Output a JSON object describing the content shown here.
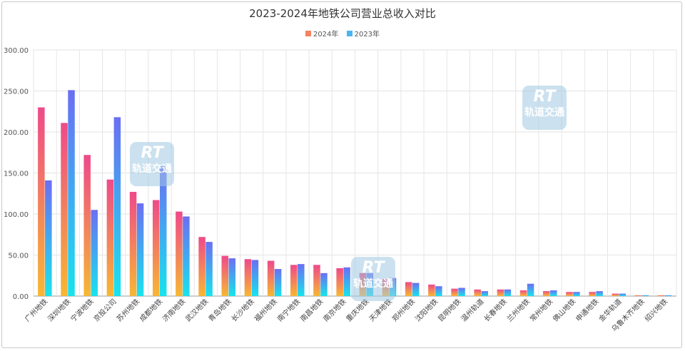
{
  "chart_data": {
    "type": "bar",
    "title": "2023-2024年地铁公司营业总收入对比",
    "categories": [
      "广州地铁",
      "深圳地铁",
      "宁波地铁",
      "京投公司",
      "苏州地铁",
      "成都地铁",
      "济南地铁",
      "武汉地铁",
      "青岛地铁",
      "长沙地铁",
      "福州地铁",
      "南宁地铁",
      "南昌地铁",
      "南京地铁",
      "重庆地铁",
      "天津地铁",
      "郑州地铁",
      "沈阳地铁",
      "昆明地铁",
      "温州轨道",
      "长春地铁",
      "兰州地铁",
      "常州地铁",
      "佛山地铁",
      "申通地铁",
      "金华轨道",
      "乌鲁木齐地铁",
      "绍兴地铁"
    ],
    "series": [
      {
        "name": "2024年",
        "color": "#f4845f",
        "values": [
          230,
          211,
          172,
          142,
          127,
          117,
          103,
          72,
          49,
          45,
          43,
          38,
          38,
          34,
          28,
          21,
          17,
          14,
          9,
          8,
          8,
          7,
          6,
          5,
          5,
          3,
          1,
          1
        ]
      },
      {
        "name": "2023年",
        "color": "#4ab6f0",
        "values": [
          141,
          251,
          105,
          218,
          113,
          158,
          97,
          66,
          46,
          44,
          33,
          39,
          28,
          35,
          28,
          22,
          16,
          12,
          10,
          6,
          8,
          15,
          7,
          5,
          6,
          3,
          1,
          1
        ]
      }
    ],
    "ylim": [
      0,
      300
    ],
    "yticks": [
      "0.00",
      "50.00",
      "100.00",
      "150.00",
      "200.00",
      "250.00",
      "300.00"
    ],
    "grid": true,
    "legend_position": "top-center"
  },
  "watermark": {
    "line1": "RT",
    "line2": "轨道交通"
  }
}
